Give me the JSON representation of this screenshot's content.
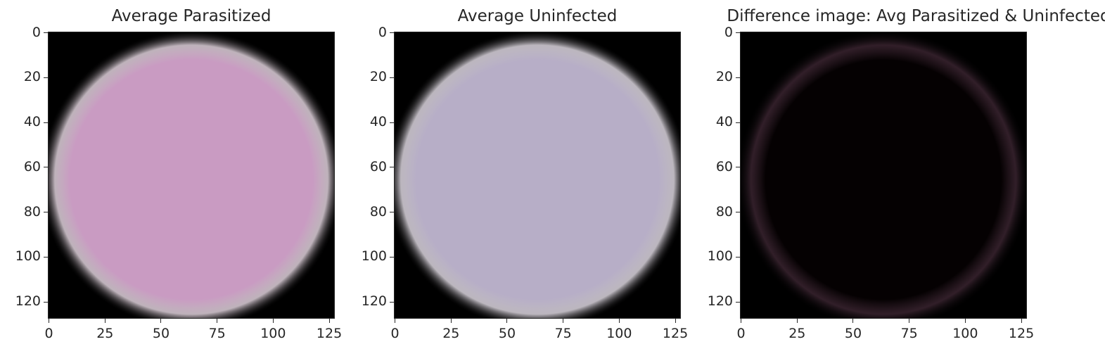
{
  "chart_data": [
    {
      "type": "heatmap",
      "title": "Average Parasitized",
      "x_ticks": [
        "0",
        "25",
        "50",
        "75",
        "100",
        "125"
      ],
      "y_ticks": [
        "0",
        "20",
        "40",
        "60",
        "80",
        "100",
        "120"
      ],
      "xlim": [
        -0.5,
        127.5
      ],
      "ylim": [
        127.5,
        -0.5
      ],
      "disc_color": "#c99bc2",
      "edge_color": "#e0d2dc",
      "background_color": "#000000"
    },
    {
      "type": "heatmap",
      "title": "Average Uninfected",
      "x_ticks": [
        "0",
        "25",
        "50",
        "75",
        "100",
        "125"
      ],
      "y_ticks": [
        "0",
        "20",
        "40",
        "60",
        "80",
        "100",
        "120"
      ],
      "xlim": [
        -0.5,
        127.5
      ],
      "ylim": [
        127.5,
        -0.5
      ],
      "disc_color": "#b7aec7",
      "edge_color": "#ddd7e0",
      "background_color": "#000000"
    },
    {
      "type": "heatmap",
      "title": "Difference image: Avg Parasitized & Uninfected",
      "x_ticks": [
        "0",
        "25",
        "50",
        "75",
        "100",
        "125"
      ],
      "y_ticks": [
        "0",
        "20",
        "40",
        "60",
        "80",
        "100",
        "120"
      ],
      "xlim": [
        -0.5,
        127.5
      ],
      "ylim": [
        127.5,
        -0.5
      ],
      "disc_color": "#050102",
      "edge_color": "#3a2430",
      "background_color": "#000000"
    }
  ]
}
